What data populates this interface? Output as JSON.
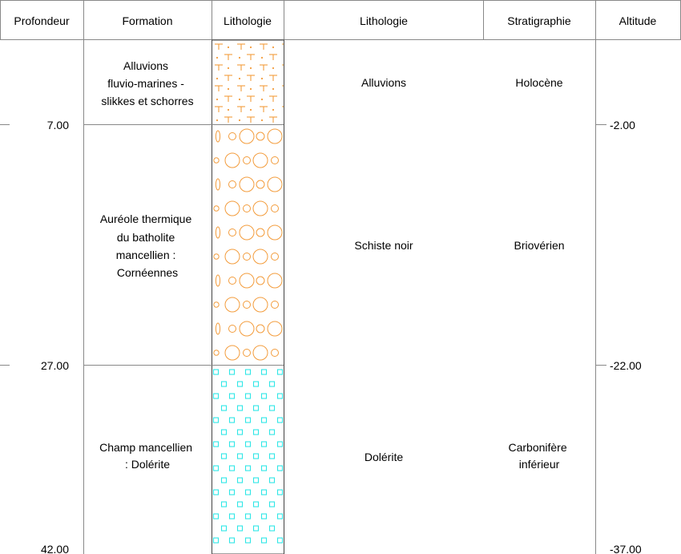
{
  "headers": [
    "Profondeur",
    "Formation",
    "Lithologie",
    "Lithologie",
    "Stratigraphie",
    "Altitude"
  ],
  "layers": [
    {
      "top_depth": 0,
      "bottom_depth": 7,
      "formation": [
        "Alluvions",
        "fluvio-marines -",
        "slikkes et schorres"
      ],
      "lithology": [
        "Alluvions"
      ],
      "stratigraphy": [
        "Holocène"
      ],
      "pattern": "t-dot-pattern",
      "pattern_color": "#f39c3c"
    },
    {
      "top_depth": 7,
      "bottom_depth": 27,
      "formation": [
        "Auréole thermique",
        "du batholite",
        "mancellien :",
        "Cornéennes"
      ],
      "lithology": [
        "Schiste noir"
      ],
      "stratigraphy": [
        "Briovérien"
      ],
      "pattern": "circle-pattern",
      "pattern_color": "#f39c3c"
    },
    {
      "top_depth": 27,
      "bottom_depth": 42,
      "formation": [
        "Champ mancellien",
        ": Dolérite"
      ],
      "lithology": [
        "Dolérite"
      ],
      "stratigraphy": [
        "Carbonifère",
        "inférieur"
      ],
      "pattern": "square-pattern",
      "pattern_color": "#2ee6e6"
    }
  ],
  "depth_labels": [
    "7.00",
    "27.00",
    "42.00"
  ],
  "altitude_labels": [
    "-2.00",
    "-22.00",
    "-37.00"
  ]
}
